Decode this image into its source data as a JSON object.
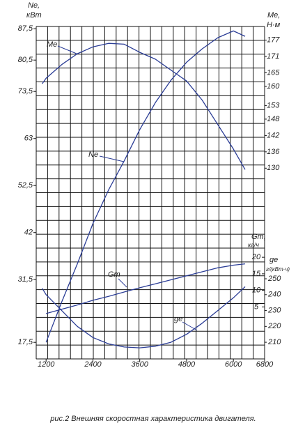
{
  "chart_data": {
    "type": "line",
    "xlim": [
      1000,
      6800
    ],
    "xticks": [
      1200,
      2400,
      3600,
      4800,
      6000,
      6800
    ],
    "x": [
      1100,
      1200,
      1600,
      2000,
      2400,
      2800,
      3200,
      3600,
      4000,
      4400,
      4800,
      5200,
      5600,
      6000,
      6300
    ],
    "ylabel": "Ne,",
    "yunit": "кВт",
    "ylim": [
      13.8,
      88
    ],
    "yticks": [
      {
        "value": 17.5,
        "label": "17,5"
      },
      {
        "value": 31.5,
        "label": "31,5"
      },
      42,
      {
        "value": 52.5,
        "label": "52,5"
      },
      63,
      {
        "value": 73.5,
        "label": "73,5"
      },
      {
        "value": 80.5,
        "label": "80,5"
      },
      {
        "value": 87.5,
        "label": "87,5"
      }
    ],
    "y2label": "Me,",
    "y2unit": "Н·м",
    "y2lim": [
      60,
      182
    ],
    "y2ticks": [
      130,
      136,
      142,
      148,
      153,
      160,
      165,
      171,
      177
    ],
    "y3label": "Gт,",
    "y3unit": "кг/ч",
    "y3lim": [
      -10.7,
      89.7
    ],
    "y3ticks": [
      5,
      10,
      15,
      20
    ],
    "y4label": "gе",
    "y4unit": "г/(кВт·ч)",
    "y4lim": [
      199.5,
      409
    ],
    "y4ticks": [
      210,
      220,
      230,
      240,
      250
    ],
    "grid": true,
    "color": "#2b3d96",
    "series": [
      {
        "name": "Ne",
        "axis": "y",
        "values": [
          null,
          17.5,
          26.5,
          35,
          44,
          51.5,
          58,
          65,
          71,
          76,
          80,
          83,
          85.5,
          87,
          85.8
        ]
      },
      {
        "name": "Me",
        "axis": "y2",
        "values": [
          161,
          163,
          168,
          172,
          174.5,
          175.8,
          175.5,
          172.5,
          170,
          166,
          162,
          155,
          146,
          137,
          129.5
        ]
      },
      {
        "name": "Gт",
        "axis": "y3",
        "values": [
          null,
          3,
          4.3,
          5.6,
          7,
          8.2,
          9.5,
          10.8,
          12,
          13.2,
          14.4,
          15.6,
          16.8,
          17.6,
          18
        ]
      },
      {
        "name": "gе",
        "axis": "y4",
        "values": [
          244,
          240,
          230,
          220,
          213,
          209,
          207,
          206.5,
          207.5,
          210,
          215,
          222,
          230,
          238,
          245
        ]
      }
    ],
    "caption": "рис.2 Внешняя скоростная характеристика двигателя."
  }
}
